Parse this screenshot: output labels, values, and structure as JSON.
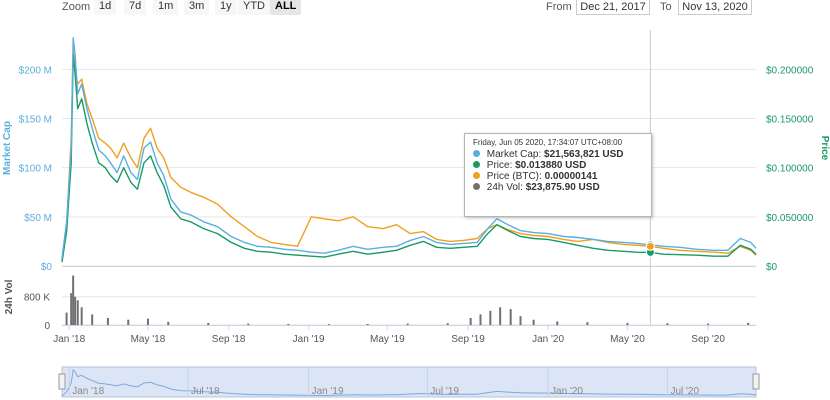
{
  "toolbar": {
    "zoom_label": "Zoom",
    "buttons": [
      "1d",
      "7d",
      "1m",
      "3m",
      "1y",
      "YTD",
      "ALL"
    ],
    "active_button": "ALL",
    "from_label": "From",
    "from_value": "Dec 21, 2017",
    "to_label": "To",
    "to_value": "Nov 13, 2020"
  },
  "tooltip": {
    "header": "Friday, Jun 05 2020, 17:34:07 UTC+08:00",
    "rows": [
      {
        "label": "Market Cap:",
        "value": "$21,563,821 USD",
        "color": "#5aaee0"
      },
      {
        "label": "Price:",
        "value": "$0.013880 USD",
        "color": "#1a9a64"
      },
      {
        "label": "Price (BTC):",
        "value": "0.00000141",
        "color": "#f0a020"
      },
      {
        "label": "24h Vol:",
        "value": "$23,875.90 USD",
        "color": "#707070"
      }
    ]
  },
  "chart_data": {
    "type": "line",
    "x_axis": {
      "ticks": [
        "Jan '18",
        "May '18",
        "Sep '18",
        "Jan '19",
        "May '19",
        "Sep '19",
        "Jan '20",
        "May '20",
        "Sep '20"
      ],
      "range": [
        "Dec 21, 2017",
        "Nov 13, 2020"
      ]
    },
    "left_axis": {
      "label": "Market Cap",
      "ticks": [
        "$0",
        "$50 M",
        "$100 M",
        "$150 M",
        "$200 M"
      ],
      "range": [
        0,
        240000000
      ],
      "color": "#5aaee0"
    },
    "right_axis": {
      "label": "Price",
      "ticks": [
        "$0",
        "$0.050000",
        "$0.100000",
        "$0.150000",
        "$0.200000"
      ],
      "range": [
        0,
        0.24
      ],
      "color": "#1a9a64"
    },
    "volume_axis": {
      "label": "24h Vol",
      "ticks": [
        "0",
        "800 K"
      ],
      "range": [
        0,
        1500000
      ]
    },
    "navigator_ticks": [
      "Jan '18",
      "Jul '18",
      "Jan '19",
      "Jul '19",
      "Jan '20",
      "Jul '20"
    ],
    "crosshair_date": "2020-06-05",
    "series": [
      {
        "name": "Market Cap",
        "color": "#5aaee0",
        "axis": "left",
        "x": [
          "2017-12-21",
          "2017-12-28",
          "2018-01-04",
          "2018-01-07",
          "2018-01-10",
          "2018-01-14",
          "2018-01-20",
          "2018-01-28",
          "2018-02-05",
          "2018-02-15",
          "2018-02-25",
          "2018-03-05",
          "2018-03-15",
          "2018-03-25",
          "2018-04-05",
          "2018-04-15",
          "2018-04-25",
          "2018-05-05",
          "2018-05-15",
          "2018-05-25",
          "2018-06-05",
          "2018-06-20",
          "2018-07-05",
          "2018-07-25",
          "2018-08-15",
          "2018-09-05",
          "2018-09-25",
          "2018-10-15",
          "2018-11-05",
          "2018-11-25",
          "2018-12-15",
          "2019-01-05",
          "2019-01-25",
          "2019-02-15",
          "2019-03-10",
          "2019-04-01",
          "2019-04-25",
          "2019-05-15",
          "2019-06-05",
          "2019-06-25",
          "2019-07-15",
          "2019-08-05",
          "2019-08-25",
          "2019-09-15",
          "2019-10-01",
          "2019-10-15",
          "2019-11-01",
          "2019-11-20",
          "2019-12-10",
          "2020-01-01",
          "2020-01-25",
          "2020-02-15",
          "2020-03-10",
          "2020-04-01",
          "2020-04-25",
          "2020-05-15",
          "2020-06-05",
          "2020-06-25",
          "2020-07-20",
          "2020-08-15",
          "2020-09-10",
          "2020-10-01",
          "2020-10-20",
          "2020-11-05",
          "2020-11-13"
        ],
        "y": [
          8,
          45,
          120,
          232,
          215,
          175,
          185,
          160,
          140,
          118,
          112,
          105,
          95,
          112,
          95,
          88,
          120,
          126,
          105,
          92,
          68,
          55,
          52,
          45,
          40,
          30,
          24,
          20,
          19,
          17,
          16,
          14,
          13,
          16,
          20,
          17,
          19,
          20,
          26,
          30,
          24,
          22,
          23,
          24,
          38,
          48,
          42,
          36,
          34,
          33,
          30,
          29,
          27,
          25,
          24,
          23,
          21.56,
          20,
          19,
          17,
          16,
          16,
          28,
          24,
          18
        ]
      },
      {
        "name": "Price",
        "color": "#1a9a64",
        "axis": "right",
        "x": [
          "2017-12-21",
          "2017-12-28",
          "2018-01-04",
          "2018-01-07",
          "2018-01-10",
          "2018-01-14",
          "2018-01-20",
          "2018-01-28",
          "2018-02-05",
          "2018-02-15",
          "2018-02-25",
          "2018-03-05",
          "2018-03-15",
          "2018-03-25",
          "2018-04-05",
          "2018-04-15",
          "2018-04-25",
          "2018-05-05",
          "2018-05-15",
          "2018-05-25",
          "2018-06-05",
          "2018-06-20",
          "2018-07-05",
          "2018-07-25",
          "2018-08-15",
          "2018-09-05",
          "2018-09-25",
          "2018-10-15",
          "2018-11-05",
          "2018-11-25",
          "2018-12-15",
          "2019-01-05",
          "2019-01-25",
          "2019-02-15",
          "2019-03-10",
          "2019-04-01",
          "2019-04-25",
          "2019-05-15",
          "2019-06-05",
          "2019-06-25",
          "2019-07-15",
          "2019-08-05",
          "2019-08-25",
          "2019-09-15",
          "2019-10-01",
          "2019-10-15",
          "2019-11-01",
          "2019-11-20",
          "2019-12-10",
          "2020-01-01",
          "2020-01-25",
          "2020-02-15",
          "2020-03-10",
          "2020-04-01",
          "2020-04-25",
          "2020-05-15",
          "2020-06-05",
          "2020-06-25",
          "2020-07-20",
          "2020-08-15",
          "2020-09-10",
          "2020-10-01",
          "2020-10-20",
          "2020-11-05",
          "2020-11-13"
        ],
        "y": [
          0.004,
          0.035,
          0.105,
          0.215,
          0.195,
          0.16,
          0.17,
          0.145,
          0.125,
          0.105,
          0.1,
          0.092,
          0.085,
          0.1,
          0.085,
          0.078,
          0.105,
          0.112,
          0.095,
          0.082,
          0.06,
          0.048,
          0.045,
          0.038,
          0.033,
          0.024,
          0.018,
          0.015,
          0.014,
          0.012,
          0.011,
          0.01,
          0.009,
          0.012,
          0.015,
          0.012,
          0.014,
          0.016,
          0.021,
          0.025,
          0.019,
          0.018,
          0.019,
          0.02,
          0.033,
          0.042,
          0.036,
          0.03,
          0.028,
          0.027,
          0.024,
          0.021,
          0.018,
          0.016,
          0.015,
          0.014,
          0.01388,
          0.012,
          0.0115,
          0.011,
          0.01,
          0.01,
          0.021,
          0.017,
          0.012
        ]
      },
      {
        "name": "Price (BTC)",
        "color": "#f0a020",
        "axis": "right",
        "x": [
          "2017-12-21",
          "2017-12-28",
          "2018-01-04",
          "2018-01-07",
          "2018-01-10",
          "2018-01-14",
          "2018-01-20",
          "2018-01-28",
          "2018-02-05",
          "2018-02-15",
          "2018-02-25",
          "2018-03-05",
          "2018-03-15",
          "2018-03-25",
          "2018-04-05",
          "2018-04-15",
          "2018-04-25",
          "2018-05-05",
          "2018-05-15",
          "2018-05-25",
          "2018-06-05",
          "2018-06-20",
          "2018-07-05",
          "2018-07-25",
          "2018-08-15",
          "2018-09-05",
          "2018-09-25",
          "2018-10-15",
          "2018-11-05",
          "2018-11-25",
          "2018-12-15",
          "2019-01-05",
          "2019-01-25",
          "2019-02-15",
          "2019-03-10",
          "2019-04-01",
          "2019-04-25",
          "2019-05-15",
          "2019-06-05",
          "2019-06-25",
          "2019-07-15",
          "2019-08-05",
          "2019-08-25",
          "2019-09-15",
          "2019-10-01",
          "2019-10-15",
          "2019-11-01",
          "2019-11-20",
          "2019-12-10",
          "2020-01-01",
          "2020-01-25",
          "2020-02-15",
          "2020-03-10",
          "2020-04-01",
          "2020-04-25",
          "2020-05-15",
          "2020-06-05",
          "2020-06-25",
          "2020-07-20",
          "2020-08-15",
          "2020-09-10",
          "2020-10-01",
          "2020-10-20",
          "2020-11-05",
          "2020-11-13"
        ],
        "y": [
          0.006,
          0.04,
          0.13,
          0.22,
          0.2,
          0.185,
          0.19,
          0.165,
          0.15,
          0.13,
          0.125,
          0.12,
          0.11,
          0.125,
          0.11,
          0.1,
          0.13,
          0.14,
          0.12,
          0.11,
          0.09,
          0.08,
          0.075,
          0.07,
          0.063,
          0.05,
          0.04,
          0.03,
          0.024,
          0.022,
          0.02,
          0.05,
          0.048,
          0.046,
          0.05,
          0.04,
          0.038,
          0.042,
          0.033,
          0.035,
          0.027,
          0.025,
          0.026,
          0.028,
          0.038,
          0.042,
          0.037,
          0.033,
          0.031,
          0.03,
          0.027,
          0.025,
          0.027,
          0.024,
          0.022,
          0.021,
          0.02,
          0.018,
          0.016,
          0.015,
          0.014,
          0.013,
          0.02,
          0.016,
          0.011
        ]
      },
      {
        "name": "24h Vol",
        "color": "#707070",
        "axis": "volume",
        "type": "bar",
        "x": [
          "2017-12-28",
          "2018-01-04",
          "2018-01-07",
          "2018-01-10",
          "2018-01-14",
          "2018-01-20",
          "2018-02-05",
          "2018-03-01",
          "2018-04-01",
          "2018-05-01",
          "2018-06-01",
          "2018-08-01",
          "2018-10-01",
          "2018-12-01",
          "2019-02-01",
          "2019-04-01",
          "2019-06-01",
          "2019-08-01",
          "2019-09-05",
          "2019-09-20",
          "2019-10-05",
          "2019-10-20",
          "2019-11-05",
          "2019-11-20",
          "2019-12-10",
          "2020-01-15",
          "2020-03-01",
          "2020-05-01",
          "2020-07-01",
          "2020-09-01",
          "2020-11-01"
        ],
        "y": [
          350000,
          900000,
          1400000,
          800000,
          700000,
          500000,
          300000,
          200000,
          150000,
          180000,
          90000,
          60000,
          40000,
          30000,
          25000,
          30000,
          40000,
          50000,
          200000,
          300000,
          400000,
          500000,
          450000,
          250000,
          150000,
          100000,
          80000,
          60000,
          50000,
          40000,
          60000
        ]
      }
    ]
  }
}
